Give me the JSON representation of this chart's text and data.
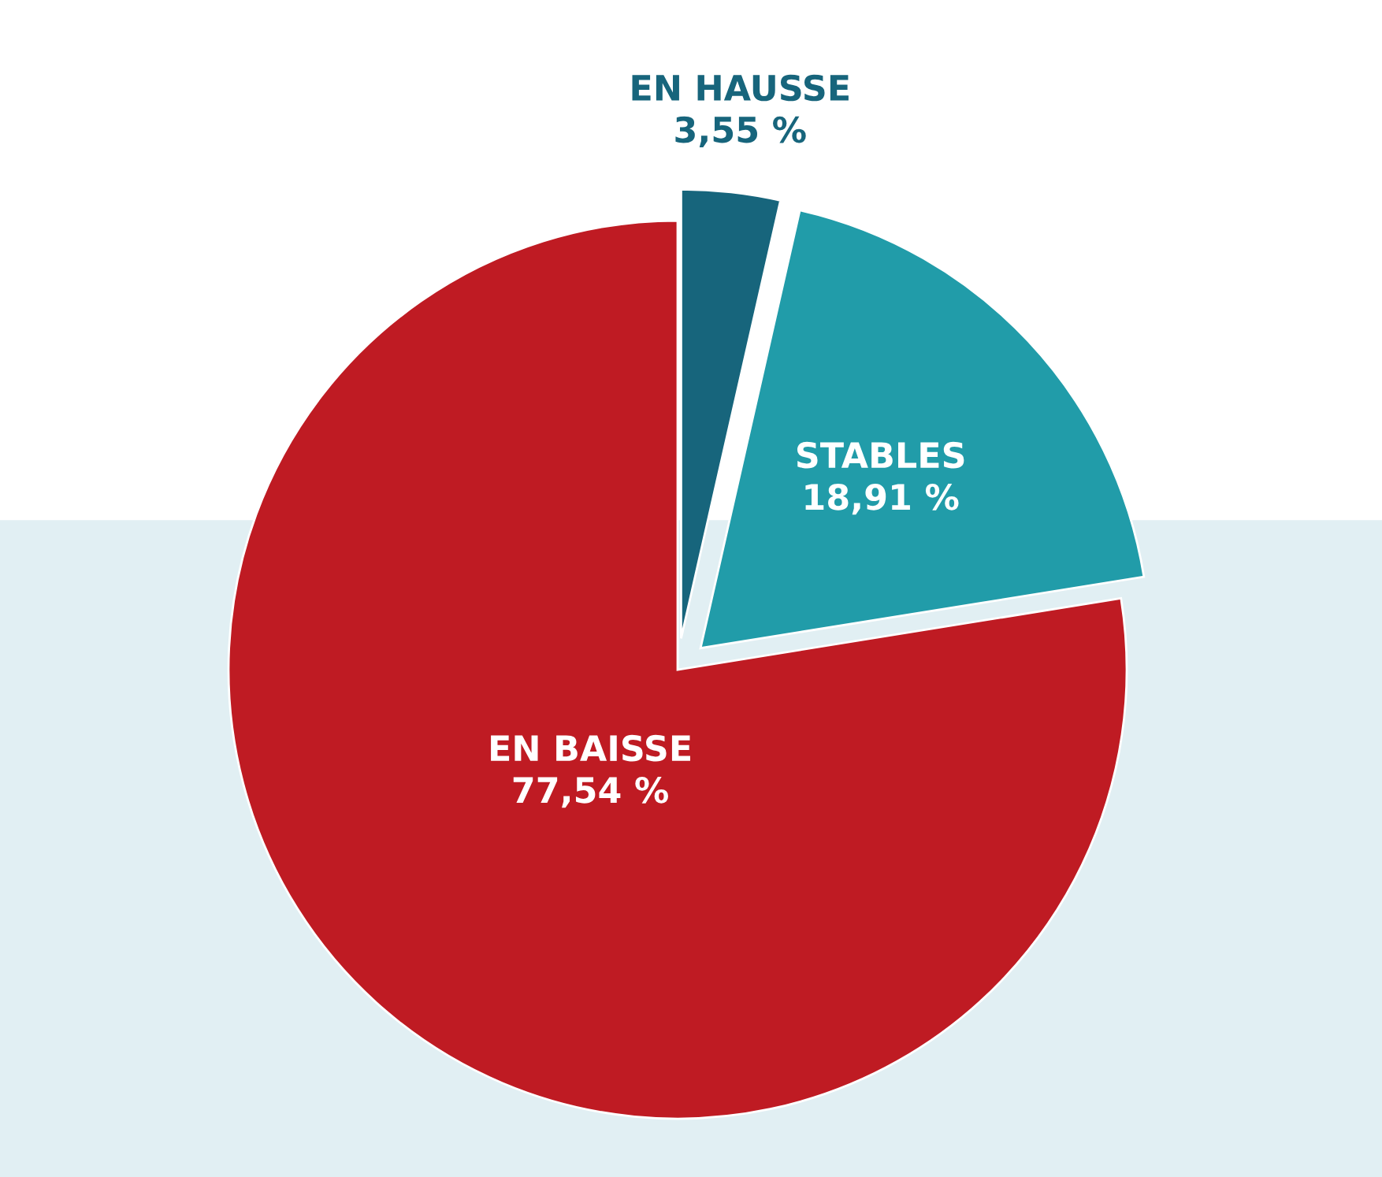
{
  "chart_data": {
    "type": "pie",
    "categories": [
      "EN HAUSSE",
      "STABLES",
      "EN BAISSE"
    ],
    "values": [
      3.55,
      18.91,
      77.54
    ],
    "value_labels": [
      "3,55 %",
      "18,91 %",
      "77,54 %"
    ],
    "colors": [
      "#17657c",
      "#219ca9",
      "#bf1b23"
    ],
    "legend": false
  }
}
